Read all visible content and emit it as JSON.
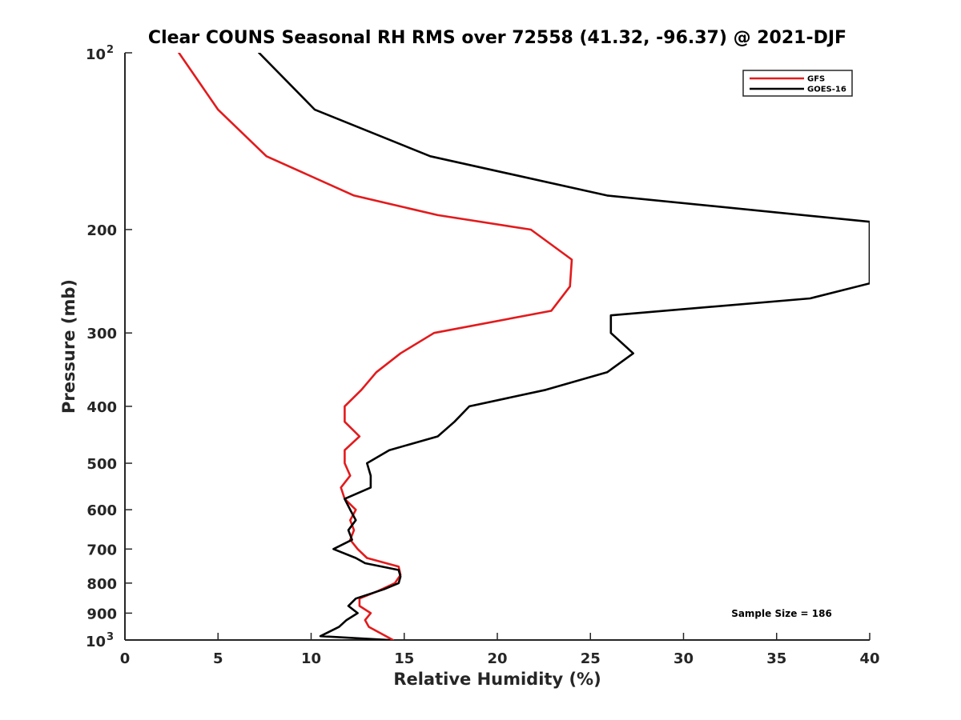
{
  "chart_data": {
    "type": "line",
    "title": "Clear COUNS Seasonal RH RMS over 72558 (41.32, -96.37) @ 2021-DJF",
    "xlabel": "Relative Humidity (%)",
    "ylabel": "Pressure (mb)",
    "xlim": [
      0,
      40
    ],
    "ylim": [
      100,
      1000
    ],
    "yscale": "log",
    "y_reversed": true,
    "grid": false,
    "x_ticks": [
      0,
      5,
      10,
      15,
      20,
      25,
      30,
      35,
      40
    ],
    "x_tick_labels": [
      "0",
      "5",
      "10",
      "15",
      "20",
      "25",
      "30",
      "35",
      "40"
    ],
    "y_ticks": [
      100,
      200,
      300,
      400,
      500,
      600,
      700,
      800,
      900,
      1000
    ],
    "y_tick_labels": [
      "",
      "200",
      "300",
      "400",
      "500",
      "600",
      "700",
      "800",
      "900",
      ""
    ],
    "y_tick_power_labels": [
      {
        "base": "10",
        "exp": "2"
      },
      {
        "base": "10",
        "exp": "3"
      }
    ],
    "legend_position": "top-right",
    "annotation": "Sample Size = 186",
    "series": [
      {
        "name": "GFS",
        "color": "#e31a1c",
        "points": [
          [
            2.9,
            100
          ],
          [
            5.0,
            125
          ],
          [
            7.6,
            150
          ],
          [
            12.3,
            175
          ],
          [
            16.8,
            189
          ],
          [
            21.8,
            200
          ],
          [
            24.0,
            225
          ],
          [
            23.9,
            250
          ],
          [
            22.9,
            275
          ],
          [
            16.6,
            300
          ],
          [
            14.8,
            325
          ],
          [
            13.5,
            350
          ],
          [
            12.7,
            375
          ],
          [
            11.8,
            400
          ],
          [
            11.8,
            425
          ],
          [
            12.6,
            450
          ],
          [
            11.8,
            475
          ],
          [
            11.8,
            500
          ],
          [
            12.1,
            525
          ],
          [
            11.6,
            550
          ],
          [
            11.8,
            575
          ],
          [
            12.4,
            600
          ],
          [
            12.1,
            625
          ],
          [
            12.3,
            650
          ],
          [
            12.1,
            675
          ],
          [
            12.5,
            700
          ],
          [
            13.0,
            725
          ],
          [
            14.7,
            750
          ],
          [
            14.8,
            775
          ],
          [
            14.5,
            800
          ],
          [
            13.6,
            825
          ],
          [
            12.6,
            850
          ],
          [
            12.6,
            875
          ],
          [
            13.2,
            900
          ],
          [
            12.9,
            925
          ],
          [
            13.1,
            950
          ],
          [
            14.4,
            1000
          ]
        ]
      },
      {
        "name": "GOES-16",
        "color": "#000000",
        "points": [
          [
            7.2,
            100
          ],
          [
            10.2,
            125
          ],
          [
            16.4,
            150
          ],
          [
            25.9,
            175
          ],
          [
            40.0,
            194
          ],
          [
            40.0,
            247
          ],
          [
            36.8,
            262
          ],
          [
            26.1,
            280
          ],
          [
            26.1,
            300
          ],
          [
            27.3,
            325
          ],
          [
            25.9,
            350
          ],
          [
            22.6,
            375
          ],
          [
            18.5,
            400
          ],
          [
            17.7,
            425
          ],
          [
            16.8,
            450
          ],
          [
            14.2,
            475
          ],
          [
            13.0,
            500
          ],
          [
            13.2,
            525
          ],
          [
            13.2,
            550
          ],
          [
            11.8,
            575
          ],
          [
            12.1,
            600
          ],
          [
            12.4,
            625
          ],
          [
            12.0,
            650
          ],
          [
            12.2,
            675
          ],
          [
            11.2,
            700
          ],
          [
            12.4,
            725
          ],
          [
            12.9,
            740
          ],
          [
            14.7,
            760
          ],
          [
            14.8,
            780
          ],
          [
            14.7,
            800
          ],
          [
            13.9,
            820
          ],
          [
            12.4,
            850
          ],
          [
            12.0,
            875
          ],
          [
            12.5,
            900
          ],
          [
            11.9,
            925
          ],
          [
            11.5,
            950
          ],
          [
            10.5,
            985
          ],
          [
            14.2,
            1000
          ]
        ]
      }
    ]
  }
}
